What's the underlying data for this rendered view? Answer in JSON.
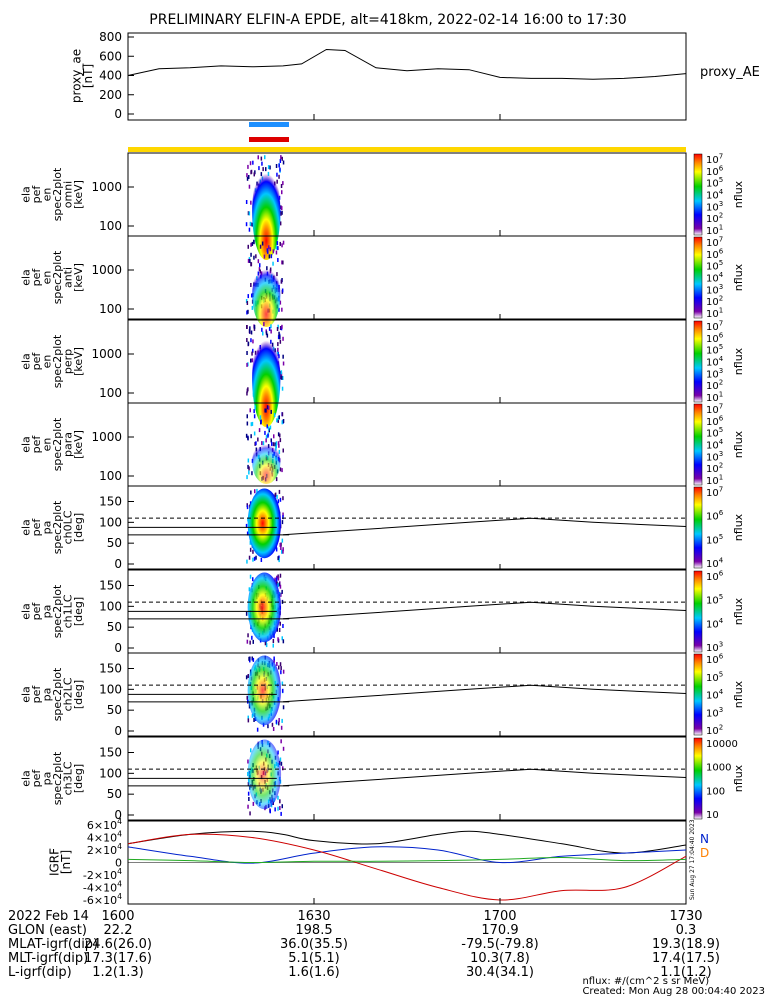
{
  "title": "PRELIMINARY ELFIN-A EPDE, alt=418km, 2022-02-14 16:00 to 17:30",
  "time_axis": {
    "ticks": [
      "1600",
      "1630",
      "1700",
      "1730"
    ]
  },
  "proxy_panel": {
    "ylabel": [
      "proxy_ae",
      "[nT]"
    ],
    "yticks": [
      "0",
      "200",
      "400",
      "600",
      "800"
    ],
    "legend": "proxy_AE"
  },
  "panels": [
    {
      "ylabel": [
        "ela",
        "pef",
        "en",
        "spec2plot",
        "omni",
        "[keV]"
      ],
      "yticks": [
        "100",
        "1000"
      ],
      "zlabel": "nflux",
      "zticks": [
        "10^1",
        "10^2",
        "10^3",
        "10^4",
        "10^5",
        "10^6",
        "10^7"
      ]
    },
    {
      "ylabel": [
        "ela",
        "pef",
        "en",
        "spec2plot",
        "anti",
        "[keV]"
      ],
      "yticks": [
        "100",
        "1000"
      ],
      "zlabel": "nflux",
      "zticks": [
        "10^1",
        "10^2",
        "10^3",
        "10^4",
        "10^5",
        "10^6",
        "10^7"
      ]
    },
    {
      "ylabel": [
        "ela",
        "pef",
        "en",
        "spec2plot",
        "perp",
        "[keV]"
      ],
      "yticks": [
        "100",
        "1000"
      ],
      "zlabel": "nflux",
      "zticks": [
        "10^1",
        "10^2",
        "10^3",
        "10^4",
        "10^5",
        "10^6",
        "10^7"
      ]
    },
    {
      "ylabel": [
        "ela",
        "pef",
        "en",
        "spec2plot",
        "para",
        "[keV]"
      ],
      "yticks": [
        "100",
        "1000"
      ],
      "zlabel": "nflux",
      "zticks": [
        "10^1",
        "10^2",
        "10^3",
        "10^4",
        "10^5",
        "10^6",
        "10^7"
      ]
    },
    {
      "ylabel": [
        "ela",
        "pef",
        "pa",
        "spec2plot",
        "ch0LC",
        "[deg]"
      ],
      "yticks": [
        "0",
        "50",
        "100",
        "150"
      ],
      "zlabel": "nflux",
      "zticks": [
        "10^4",
        "10^5",
        "10^6",
        "10^7"
      ]
    },
    {
      "ylabel": [
        "ela",
        "pef",
        "pa",
        "spec2plot",
        "ch1LC",
        "[deg]"
      ],
      "yticks": [
        "0",
        "50",
        "100",
        "150"
      ],
      "zlabel": "nflux",
      "zticks": [
        "10^3",
        "10^4",
        "10^5",
        "10^6"
      ]
    },
    {
      "ylabel": [
        "ela",
        "pef",
        "pa",
        "spec2plot",
        "ch2LC",
        "[deg]"
      ],
      "yticks": [
        "0",
        "50",
        "100",
        "150"
      ],
      "zlabel": "nflux",
      "zticks": [
        "10^2",
        "10^3",
        "10^4",
        "10^5",
        "10^6"
      ]
    },
    {
      "ylabel": [
        "ela",
        "pef",
        "pa",
        "spec2plot",
        "ch3LC",
        "[deg]"
      ],
      "yticks": [
        "0",
        "50",
        "100",
        "150"
      ],
      "zlabel": "nflux",
      "zticks": [
        "10",
        "100",
        "1000",
        "10000"
      ]
    }
  ],
  "igrf_panel": {
    "ylabel": [
      "IGRF",
      "[nT]"
    ],
    "yticks": [
      "-6×10^4",
      "-4×10^4",
      "-2×10^4",
      "0",
      "2×10^4",
      "4×10^4",
      "6×10^4"
    ],
    "legend": [
      "N",
      "D"
    ],
    "stamp": "Sun Aug 27 17:04:40 2023"
  },
  "ephemeris": {
    "labels": [
      "2022 Feb 14",
      "GLON (east)",
      "MLAT-igrf(dip)",
      "MLT-igrf(dip)",
      "L-igrf(dip)"
    ],
    "columns": [
      [
        "1600",
        "22.2",
        "24.6(26.0)",
        "17.3(17.6)",
        "1.2(1.3)"
      ],
      [
        "1630",
        "198.5",
        "36.0(35.5)",
        "5.1(5.1)",
        "1.6(1.6)"
      ],
      [
        "1700",
        "170.9",
        "-79.5(-79.8)",
        "10.3(7.8)",
        "30.4(34.1)"
      ],
      [
        "1730",
        "0.3",
        "19.3(18.9)",
        "17.4(17.5)",
        "1.1(1.2)"
      ]
    ]
  },
  "footer": {
    "units": "nflux: #/(cm^2 s sr MeV)",
    "created": "Created: Mon Aug 28 00:04:40 2023"
  },
  "colors": {
    "bar_blue": "#1e90ff",
    "bar_red": "#dd0000",
    "bar_yellow": "#ffd700",
    "igrf_black": "#000000",
    "igrf_blue": "#0022cc",
    "igrf_red": "#cc0000",
    "igrf_green": "#22aa22"
  },
  "chart_data": {
    "type": "line",
    "title": "PRELIMINARY ELFIN-A EPDE, alt=418km, 2022-02-14 16:00 to 17:30",
    "x_range_minutes": [
      0,
      90
    ],
    "series": [
      {
        "name": "proxy_AE",
        "x": [
          0,
          5,
          10,
          15,
          20,
          25,
          28,
          32,
          35,
          40,
          45,
          50,
          55,
          60,
          65,
          70,
          75,
          80,
          85,
          90
        ],
        "values": [
          400,
          470,
          480,
          500,
          490,
          500,
          520,
          670,
          660,
          480,
          450,
          470,
          460,
          380,
          370,
          370,
          360,
          370,
          390,
          420
        ],
        "ylim": [
          0,
          800
        ]
      },
      {
        "name": "IGRF N (black)",
        "x": [
          0,
          10,
          20,
          25,
          30,
          40,
          50,
          55,
          60,
          70,
          80,
          90
        ],
        "values": [
          30000,
          45000,
          50000,
          45000,
          35000,
          30000,
          45000,
          50000,
          45000,
          30000,
          15000,
          28000
        ],
        "ylim": [
          -60000,
          60000
        ]
      },
      {
        "name": "IGRF blue",
        "x": [
          0,
          10,
          20,
          30,
          40,
          50,
          60,
          70,
          80,
          90
        ],
        "values": [
          25000,
          10000,
          -1000,
          15000,
          25000,
          20000,
          0,
          10000,
          15000,
          20000
        ],
        "ylim": [
          -60000,
          60000
        ]
      },
      {
        "name": "IGRF D (red)",
        "x": [
          0,
          10,
          20,
          30,
          40,
          50,
          60,
          70,
          80,
          90
        ],
        "values": [
          30000,
          45000,
          40000,
          20000,
          -10000,
          -40000,
          -60000,
          -45000,
          -40000,
          10000
        ],
        "ylim": [
          -60000,
          60000
        ]
      },
      {
        "name": "IGRF green",
        "x": [
          0,
          10,
          20,
          30,
          40,
          50,
          60,
          70,
          80,
          90
        ],
        "values": [
          5000,
          3000,
          0,
          2000,
          2000,
          3000,
          5000,
          8000,
          3000,
          5000
        ],
        "ylim": [
          -60000,
          60000
        ]
      }
    ],
    "spectrogram_burst_minutes": [
      19,
      25
    ],
    "pitch_angle_lines": {
      "solid_lower": 70,
      "dashed_upper": 110,
      "varying_curve": {
        "x": [
          25,
          40,
          55,
          65,
          75,
          90
        ],
        "values": [
          70,
          85,
          100,
          110,
          100,
          90
        ]
      }
    }
  }
}
